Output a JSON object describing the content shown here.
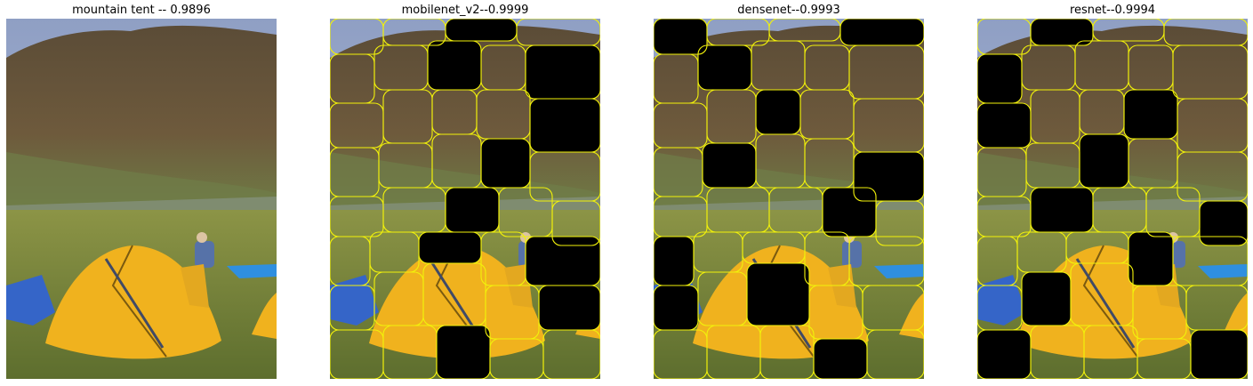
{
  "panels": [
    {
      "title": "mountain tent -- 0.9896",
      "variant": "original"
    },
    {
      "title": "mobilenet_v2--0.9999",
      "variant": "masked"
    },
    {
      "title": "densenet--0.9993",
      "variant": "masked"
    },
    {
      "title": "resnet--0.9994",
      "variant": "masked"
    }
  ],
  "colors": {
    "segment_boundary": "#f2f20a",
    "mask": "#000000",
    "tent": "#f0b21e",
    "sky": "#b7c0d8",
    "mountain": "#6e5a3c",
    "grass": "#7c8a3a"
  }
}
